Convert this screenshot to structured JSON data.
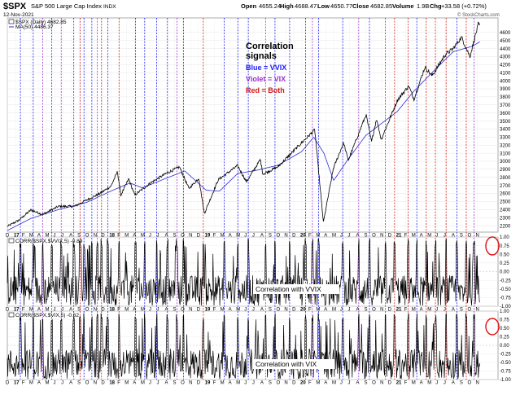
{
  "header": {
    "symbol": "$SPX",
    "name": "S&P 500 Large Cap Index",
    "exchange": "INDX",
    "date": "12-Nov-2021",
    "open_label": "Open",
    "open": "4655.24",
    "high_label": "High",
    "high": "4688.47",
    "low_label": "Low",
    "low": "4650.77",
    "close_label": "Close",
    "close": "4682.85",
    "volume_label": "Volume",
    "volume": "1.9B",
    "chg_label": "Chg",
    "chg": "+33.58 (+0.72%)",
    "watermark": "© StockCharts.com"
  },
  "legend_panel": {
    "line1": "$SPX (Daily) 4682.85",
    "line2": "MA(50) 4486.37"
  },
  "annotation": {
    "title": "Correlation",
    "title2": "signals",
    "blue": "Blue = VVIX",
    "violet": "Violet = VIX",
    "red": "Red = Both"
  },
  "colors": {
    "price": "#000000",
    "ma": "#2b2bd6",
    "blue_signal": "#1a1aff",
    "violet_signal": "#9b30d0",
    "red_signal": "#d01818",
    "circle": "#dd1111",
    "grid": "#cfcfcf"
  },
  "chart_data": [
    {
      "type": "line",
      "title": "$SPX S&P 500 Large Cap Index",
      "x_start": "2016-12-01",
      "x_end": "2021-11-12",
      "y_ticks": [
        2200,
        2300,
        2400,
        2500,
        2600,
        2700,
        2800,
        2900,
        3000,
        3100,
        3200,
        3300,
        3400,
        3500,
        3600,
        3700,
        3800,
        3900,
        4000,
        4100,
        4200,
        4300,
        4400,
        4500,
        4600
      ],
      "ylim": [
        2120,
        4780
      ],
      "series": [
        {
          "name": "$SPX (Daily)",
          "points": [
            [
              "2016-12-01",
              2190
            ],
            [
              "2017-01-15",
              2270
            ],
            [
              "2017-03-01",
              2395
            ],
            [
              "2017-04-15",
              2340
            ],
            [
              "2017-06-15",
              2440
            ],
            [
              "2017-08-15",
              2440
            ],
            [
              "2017-10-01",
              2520
            ],
            [
              "2017-11-15",
              2590
            ],
            [
              "2018-01-01",
              2690
            ],
            [
              "2018-01-26",
              2870
            ],
            [
              "2018-02-08",
              2580
            ],
            [
              "2018-03-10",
              2780
            ],
            [
              "2018-04-02",
              2580
            ],
            [
              "2018-06-01",
              2730
            ],
            [
              "2018-08-01",
              2850
            ],
            [
              "2018-09-20",
              2930
            ],
            [
              "2018-10-26",
              2660
            ],
            [
              "2018-12-03",
              2790
            ],
            [
              "2018-12-24",
              2350
            ],
            [
              "2019-02-15",
              2770
            ],
            [
              "2019-04-30",
              2945
            ],
            [
              "2019-06-03",
              2745
            ],
            [
              "2019-07-26",
              3020
            ],
            [
              "2019-08-05",
              2840
            ],
            [
              "2019-10-01",
              2930
            ],
            [
              "2019-12-31",
              3230
            ],
            [
              "2020-02-19",
              3390
            ],
            [
              "2020-03-23",
              2240
            ],
            [
              "2020-04-30",
              2910
            ],
            [
              "2020-06-08",
              3230
            ],
            [
              "2020-06-26",
              3010
            ],
            [
              "2020-09-02",
              3580
            ],
            [
              "2020-09-23",
              3240
            ],
            [
              "2020-10-12",
              3530
            ],
            [
              "2020-10-30",
              3270
            ],
            [
              "2020-12-31",
              3760
            ],
            [
              "2021-02-12",
              3935
            ],
            [
              "2021-03-04",
              3770
            ],
            [
              "2021-04-15",
              4170
            ],
            [
              "2021-05-12",
              4060
            ],
            [
              "2021-07-01",
              4320
            ],
            [
              "2021-08-01",
              4400
            ],
            [
              "2021-09-02",
              4540
            ],
            [
              "2021-10-04",
              4300
            ],
            [
              "2021-11-05",
              4700
            ],
            [
              "2021-11-12",
              4682
            ]
          ]
        },
        {
          "name": "MA(50)",
          "points": [
            [
              "2016-12-01",
              2140
            ],
            [
              "2017-03-01",
              2290
            ],
            [
              "2017-06-15",
              2400
            ],
            [
              "2017-10-01",
              2490
            ],
            [
              "2018-01-01",
              2630
            ],
            [
              "2018-03-15",
              2730
            ],
            [
              "2018-05-01",
              2670
            ],
            [
              "2018-08-01",
              2790
            ],
            [
              "2018-10-10",
              2880
            ],
            [
              "2018-12-31",
              2640
            ],
            [
              "2019-02-20",
              2630
            ],
            [
              "2019-05-01",
              2850
            ],
            [
              "2019-07-01",
              2880
            ],
            [
              "2019-10-01",
              2950
            ],
            [
              "2019-12-31",
              3120
            ],
            [
              "2020-02-15",
              3300
            ],
            [
              "2020-03-25",
              3100
            ],
            [
              "2020-05-01",
              2760
            ],
            [
              "2020-06-20",
              3000
            ],
            [
              "2020-09-01",
              3320
            ],
            [
              "2020-12-31",
              3620
            ],
            [
              "2021-03-01",
              3860
            ],
            [
              "2021-05-15",
              4110
            ],
            [
              "2021-08-01",
              4360
            ],
            [
              "2021-10-15",
              4430
            ],
            [
              "2021-11-12",
              4486
            ]
          ]
        }
      ],
      "x_ticks": [
        "D",
        "17",
        "F",
        "M",
        "A",
        "M",
        "J",
        "J",
        "A",
        "S",
        "O",
        "N",
        "D",
        "18",
        "F",
        "M",
        "A",
        "M",
        "J",
        "J",
        "A",
        "S",
        "O",
        "N",
        "D",
        "19",
        "F",
        "M",
        "A",
        "M",
        "J",
        "J",
        "A",
        "S",
        "O",
        "N",
        "D",
        "20",
        "F",
        "M",
        "A",
        "M",
        "J",
        "J",
        "A",
        "S",
        "O",
        "N",
        "D",
        "21",
        "F",
        "M",
        "A",
        "M",
        "J",
        "J",
        "A",
        "S",
        "O",
        "N"
      ],
      "signal_lines": [
        {
          "date": "2017-01-20",
          "kind": "blue"
        },
        {
          "date": "2017-03-10",
          "kind": "blue"
        },
        {
          "date": "2017-04-15",
          "kind": "violet"
        },
        {
          "date": "2017-05-20",
          "kind": "blue"
        },
        {
          "date": "2017-06-25",
          "kind": "violet"
        },
        {
          "date": "2017-08-12",
          "kind": "blue"
        },
        {
          "date": "2017-09-05",
          "kind": "red"
        },
        {
          "date": "2017-09-20",
          "kind": "blue"
        },
        {
          "date": "2017-10-20",
          "kind": "blue"
        },
        {
          "date": "2017-11-10",
          "kind": "violet"
        },
        {
          "date": "2017-11-26",
          "kind": "red"
        },
        {
          "date": "2017-12-20",
          "kind": "blue"
        },
        {
          "date": "2018-02-01",
          "kind": "red"
        },
        {
          "date": "2018-04-05",
          "kind": "blue"
        },
        {
          "date": "2018-05-10",
          "kind": "blue"
        },
        {
          "date": "2018-06-25",
          "kind": "blue"
        },
        {
          "date": "2018-08-05",
          "kind": "blue"
        },
        {
          "date": "2018-09-10",
          "kind": "violet"
        },
        {
          "date": "2018-10-05",
          "kind": "blue"
        },
        {
          "date": "2018-12-20",
          "kind": "red"
        },
        {
          "date": "2019-03-10",
          "kind": "blue"
        },
        {
          "date": "2019-05-01",
          "kind": "blue"
        },
        {
          "date": "2019-06-10",
          "kind": "blue"
        },
        {
          "date": "2019-08-15",
          "kind": "violet"
        },
        {
          "date": "2019-09-20",
          "kind": "blue"
        },
        {
          "date": "2019-11-15",
          "kind": "blue"
        },
        {
          "date": "2020-01-15",
          "kind": "blue"
        },
        {
          "date": "2020-02-10",
          "kind": "violet"
        },
        {
          "date": "2020-03-05",
          "kind": "blue"
        },
        {
          "date": "2020-06-05",
          "kind": "blue"
        },
        {
          "date": "2020-08-05",
          "kind": "violet"
        },
        {
          "date": "2020-09-15",
          "kind": "blue"
        },
        {
          "date": "2020-11-15",
          "kind": "red"
        },
        {
          "date": "2020-12-20",
          "kind": "red"
        },
        {
          "date": "2021-02-10",
          "kind": "red"
        },
        {
          "date": "2021-03-15",
          "kind": "blue"
        },
        {
          "date": "2021-04-20",
          "kind": "red"
        },
        {
          "date": "2021-05-25",
          "kind": "red"
        },
        {
          "date": "2021-07-05",
          "kind": "red"
        },
        {
          "date": "2021-08-15",
          "kind": "blue"
        },
        {
          "date": "2021-09-20",
          "kind": "red"
        },
        {
          "date": "2021-10-20",
          "kind": "violet"
        }
      ]
    },
    {
      "type": "line",
      "title": "CORR($SPX,$VVIX,5) -0.89",
      "label": "Correlation with VVIX",
      "x_start": "2016-12-01",
      "x_end": "2021-11-12",
      "ylim": [
        -1.0,
        1.0
      ],
      "y_ticks": [
        -1.0,
        -0.75,
        -0.5,
        -0.25,
        0.0,
        0.25,
        0.5,
        0.75,
        1.0
      ],
      "y_tick_labels": [
        "-1.00",
        "-0.75",
        "-0.50",
        "-0.25",
        "0.00",
        "0.25",
        "0.50",
        "0.75",
        "1.00"
      ],
      "last_value": -0.89
    },
    {
      "type": "line",
      "title": "CORR($SPX,$VIX,5) -0.62",
      "label": "Correlation with VIX",
      "x_start": "2016-12-01",
      "x_end": "2021-11-12",
      "ylim": [
        -1.0,
        1.0
      ],
      "y_ticks": [
        -1.0,
        -0.75,
        -0.5,
        -0.25,
        0.0,
        0.25,
        0.5,
        0.75,
        1.0
      ],
      "y_tick_labels": [
        "-1.00",
        "-0.75",
        "-0.50",
        "-0.25",
        "0.00",
        "0.25",
        "0.50",
        "0.75",
        "1.00"
      ],
      "last_value": -0.62
    }
  ]
}
